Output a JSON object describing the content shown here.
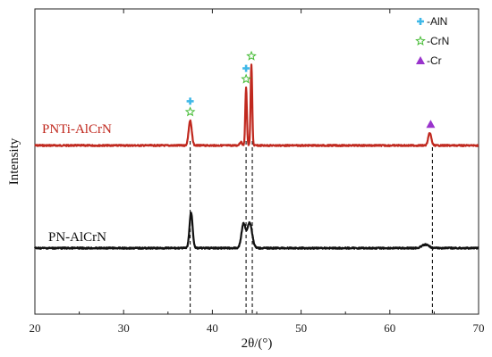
{
  "chart_data": {
    "type": "line",
    "title": "",
    "xlabel": "2θ/(°)",
    "ylabel": "Intensity",
    "xlim": [
      20,
      70
    ],
    "x_ticks": [
      20,
      30,
      40,
      50,
      60,
      70
    ],
    "y_ticks_shown": false,
    "grid": false,
    "legend_position": "top-right",
    "legend": [
      {
        "label": "-AlN",
        "marker": "cross",
        "color": "#3fb8e8"
      },
      {
        "label": "-CrN",
        "marker": "star",
        "color": "#44bb33"
      },
      {
        "label": "-Cr",
        "marker": "triangle",
        "color": "#9933cc"
      }
    ],
    "series": [
      {
        "name": "PNTi-AlCrN",
        "color": "#c0281e",
        "baseline": 0.0,
        "peaks": [
          {
            "x": 37.5,
            "height": 0.3,
            "width": 0.35
          },
          {
            "x": 43.2,
            "height": 0.04,
            "width": 0.3
          },
          {
            "x": 43.8,
            "height": 0.7,
            "width": 0.18
          },
          {
            "x": 44.4,
            "height": 0.98,
            "width": 0.18
          },
          {
            "x": 64.5,
            "height": 0.15,
            "width": 0.35
          }
        ],
        "markers": [
          {
            "x": 37.5,
            "types": [
              "AlN",
              "CrN"
            ]
          },
          {
            "x": 43.8,
            "types": [
              "AlN",
              "CrN"
            ]
          },
          {
            "x": 44.4,
            "types": [
              "CrN"
            ]
          },
          {
            "x": 64.6,
            "types": [
              "Cr"
            ]
          }
        ]
      },
      {
        "name": "PN-AlCrN",
        "color": "#111111",
        "baseline": 0.0,
        "peaks": [
          {
            "x": 37.6,
            "height": 0.42,
            "width": 0.35
          },
          {
            "x": 43.5,
            "height": 0.28,
            "width": 0.45
          },
          {
            "x": 44.2,
            "height": 0.3,
            "width": 0.55
          },
          {
            "x": 64.0,
            "height": 0.04,
            "width": 0.8
          }
        ],
        "markers": []
      }
    ],
    "reference_lines_x": [
      37.5,
      43.8,
      44.5,
      64.8
    ]
  }
}
